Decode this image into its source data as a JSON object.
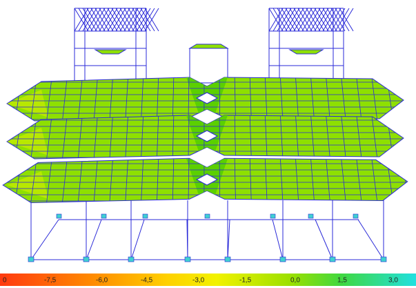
{
  "legend": {
    "labels": [
      "0",
      "-7,5",
      "-6,0",
      "-4,5",
      "-3,0",
      "-1,5",
      "0,0",
      "1,5",
      "3,0"
    ]
  }
}
